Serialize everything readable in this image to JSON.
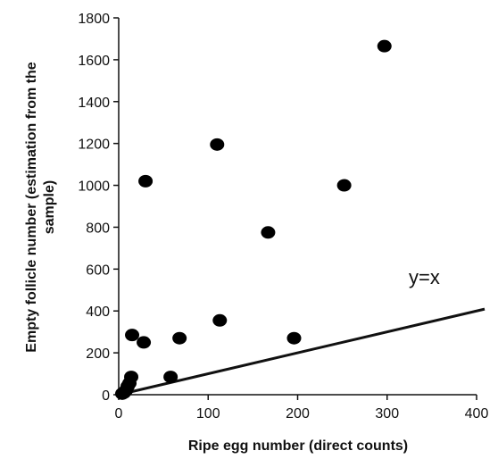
{
  "chart_data": {
    "type": "scatter",
    "title": "",
    "xlabel": "Ripe egg number (direct counts)",
    "ylabel_lines": [
      "Empty follicle number (estimation from the",
      "sample)"
    ],
    "xlim": [
      0,
      400
    ],
    "ylim": [
      0,
      1800
    ],
    "xticks": [
      0,
      100,
      200,
      300,
      400
    ],
    "yticks": [
      0,
      200,
      400,
      600,
      800,
      1000,
      1200,
      1400,
      1600,
      1800
    ],
    "grid": false,
    "points": [
      {
        "x": 4,
        "y": 5
      },
      {
        "x": 6,
        "y": 10
      },
      {
        "x": 8,
        "y": 20
      },
      {
        "x": 10,
        "y": 40
      },
      {
        "x": 12,
        "y": 55
      },
      {
        "x": 14,
        "y": 85
      },
      {
        "x": 15,
        "y": 285
      },
      {
        "x": 28,
        "y": 250
      },
      {
        "x": 30,
        "y": 1020
      },
      {
        "x": 58,
        "y": 85
      },
      {
        "x": 68,
        "y": 270
      },
      {
        "x": 110,
        "y": 1195
      },
      {
        "x": 113,
        "y": 355
      },
      {
        "x": 167,
        "y": 775
      },
      {
        "x": 196,
        "y": 270
      },
      {
        "x": 252,
        "y": 1000
      },
      {
        "x": 297,
        "y": 1665
      }
    ],
    "reference_line": {
      "label": "y=x",
      "from": [
        0,
        0
      ],
      "to": [
        409,
        409
      ]
    }
  }
}
